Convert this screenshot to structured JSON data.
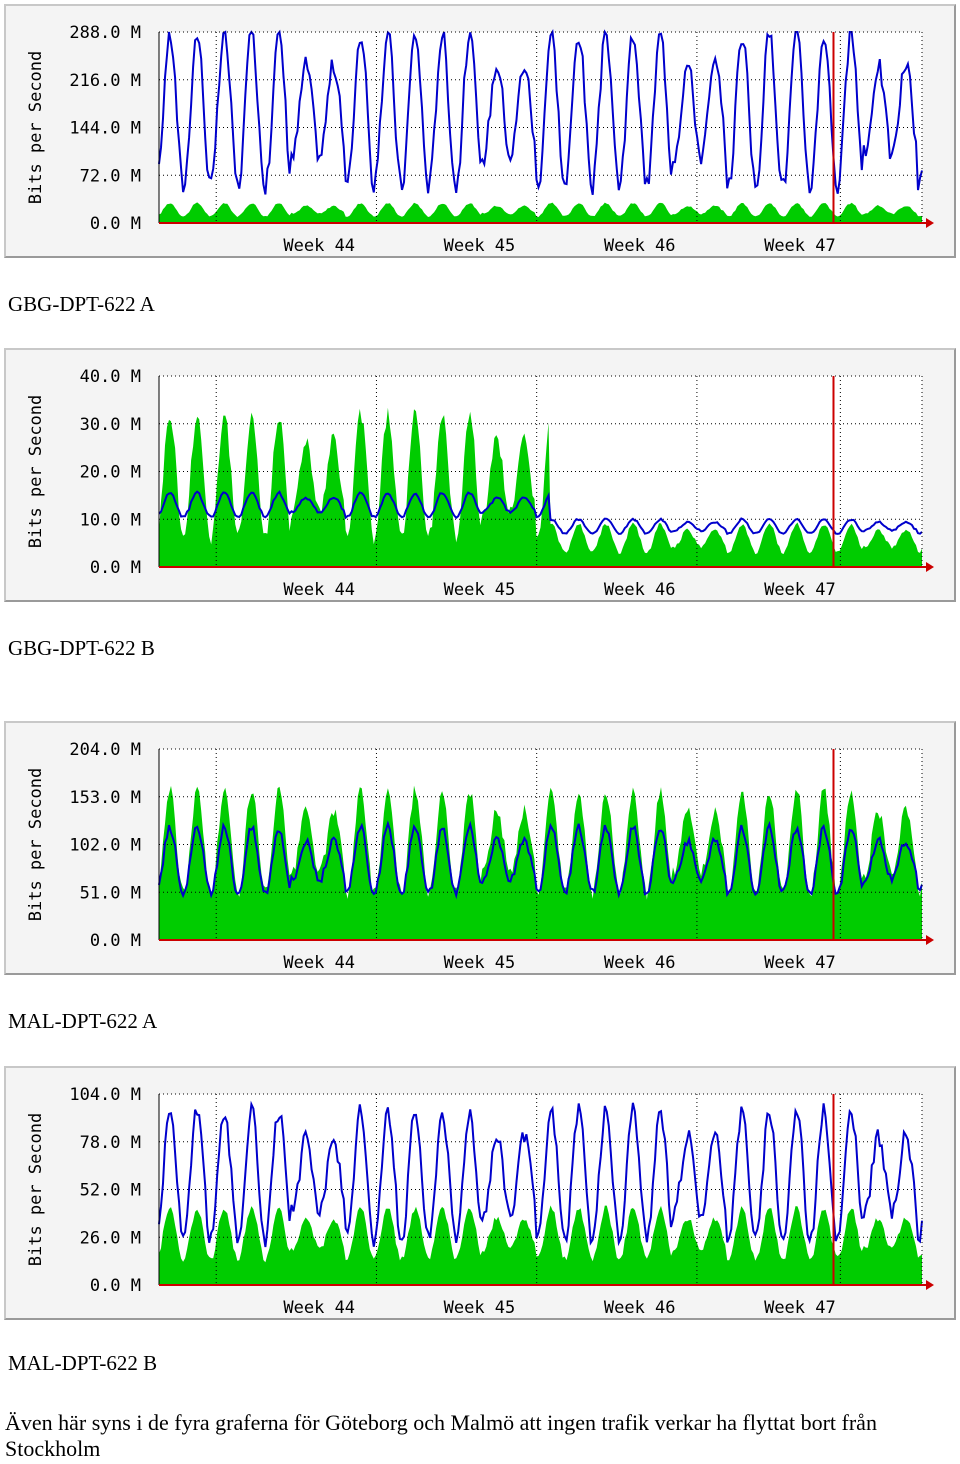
{
  "colors": {
    "in": "#00cc00",
    "out": "#0000cc",
    "now": "#cc0000",
    "grid": "#000000",
    "axis": "#cc0000"
  },
  "x_ticks": [
    "Week 44",
    "Week 45",
    "Week 46",
    "Week 47"
  ],
  "y_axis_label": "Bits per Second",
  "captions": [
    "GBG-DPT-622 A",
    "GBG-DPT-622 B",
    "MAL-DPT-622 A",
    "MAL-DPT-622 B"
  ],
  "footer": "Även här syns i de fyra graferna för Göteborg och Malmö att ingen trafik verkar ha flyttat bort från Stockholm",
  "chart_data": [
    {
      "type": "area",
      "caption": "GBG-DPT-622 A",
      "ylabel": "Bits per Second",
      "yticks": [
        "0.0 M",
        "72.0 M",
        "144.0 M",
        "216.0 M",
        "288.0 M"
      ],
      "ylim": [
        0,
        288
      ],
      "unit": "M",
      "xticks": [
        "Week 44",
        "Week 45",
        "Week 46",
        "Week 47"
      ],
      "series": [
        {
          "kind": "in",
          "style": "filled area",
          "color": "#00cc00",
          "base": 20,
          "amp": 10,
          "level_change": null
        },
        {
          "kind": "out",
          "style": "line",
          "color": "#0000cc",
          "base": 170,
          "amp": 115,
          "level_change": null
        }
      ]
    },
    {
      "type": "area",
      "caption": "GBG-DPT-622 B",
      "ylabel": "Bits per Second",
      "yticks": [
        "0.0 M",
        "10.0 M",
        "20.0 M",
        "30.0 M",
        "40.0 M"
      ],
      "ylim": [
        0,
        40
      ],
      "unit": "M",
      "xticks": [
        "Week 44",
        "Week 45",
        "Week 46",
        "Week 47"
      ],
      "series": [
        {
          "kind": "in",
          "style": "filled area",
          "color": "#00cc00",
          "base": 19,
          "amp": 13,
          "drop_at": 0.513,
          "after_base": 6,
          "after_amp": 3
        },
        {
          "kind": "out",
          "style": "line",
          "color": "#0000cc",
          "base": 13,
          "amp": 2.5,
          "drop_at": 0.513,
          "after_base": 8.5,
          "after_amp": 1.5
        }
      ]
    },
    {
      "type": "area",
      "caption": "MAL-DPT-622 A",
      "ylabel": "Bits per Second",
      "yticks": [
        "0.0 M",
        "51.0 M",
        "102.0 M",
        "153.0 M",
        "204.0 M"
      ],
      "ylim": [
        0,
        204
      ],
      "unit": "M",
      "xticks": [
        "Week 44",
        "Week 45",
        "Week 46",
        "Week 47"
      ],
      "series": [
        {
          "kind": "in",
          "style": "filled area",
          "color": "#00cc00",
          "base": 105,
          "amp": 55
        },
        {
          "kind": "out",
          "style": "line",
          "color": "#0000cc",
          "base": 85,
          "amp": 35
        }
      ]
    },
    {
      "type": "area",
      "caption": "MAL-DPT-622 B",
      "ylabel": "Bits per Second",
      "yticks": [
        "0.0 M",
        "26.0 M",
        "52.0 M",
        "78.0 M",
        "104.0 M"
      ],
      "ylim": [
        0,
        104
      ],
      "unit": "M",
      "xticks": [
        "Week 44",
        "Week 45",
        "Week 46",
        "Week 47"
      ],
      "series": [
        {
          "kind": "in",
          "style": "filled area",
          "color": "#00cc00",
          "base": 28,
          "amp": 14
        },
        {
          "kind": "out",
          "style": "line",
          "color": "#0000cc",
          "base": 60,
          "amp": 35
        }
      ]
    }
  ]
}
